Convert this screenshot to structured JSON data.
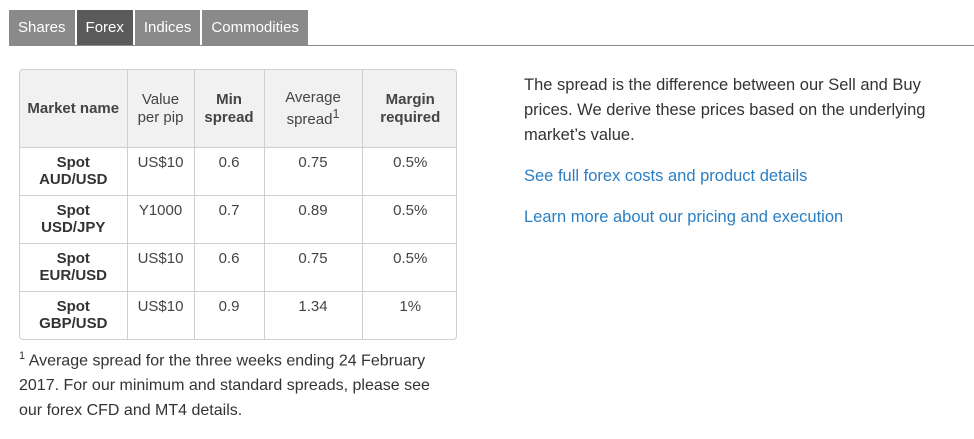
{
  "tabs": [
    {
      "label": "Shares",
      "active": false
    },
    {
      "label": "Forex",
      "active": true
    },
    {
      "label": "Indices",
      "active": false
    },
    {
      "label": "Commodities",
      "active": false
    }
  ],
  "table": {
    "headers": {
      "market": "Market name",
      "value": "Value per pip",
      "min_spread": "Min spread",
      "average_spread": "Average spread",
      "average_spread_footnote": "1",
      "margin": "Margin required"
    },
    "rows": [
      {
        "market_line1": "Spot",
        "market_line2": "AUD/USD",
        "value": "US$10",
        "min_spread": "0.6",
        "average_spread": "0.75",
        "margin": "0.5%"
      },
      {
        "market_line1": "Spot",
        "market_line2": "USD/JPY",
        "value": "Y1000",
        "min_spread": "0.7",
        "average_spread": "0.89",
        "margin": "0.5%"
      },
      {
        "market_line1": "Spot",
        "market_line2": "EUR/USD",
        "value": "US$10",
        "min_spread": "0.6",
        "average_spread": "0.75",
        "margin": "0.5%"
      },
      {
        "market_line1": "Spot",
        "market_line2": "GBP/USD",
        "value": "US$10",
        "min_spread": "0.9",
        "average_spread": "1.34",
        "margin": "1%"
      }
    ]
  },
  "footnote": {
    "marker": "1",
    "text": " Average spread for the three weeks ending 24 February 2017. For our minimum and standard spreads, please see our forex CFD and MT4 details."
  },
  "description": "The spread is the difference between our Sell and Buy prices. We derive these prices based on the underlying market’s value.",
  "links": {
    "costs": "See full forex costs and product details",
    "pricing": "Learn more about our pricing and execution"
  }
}
